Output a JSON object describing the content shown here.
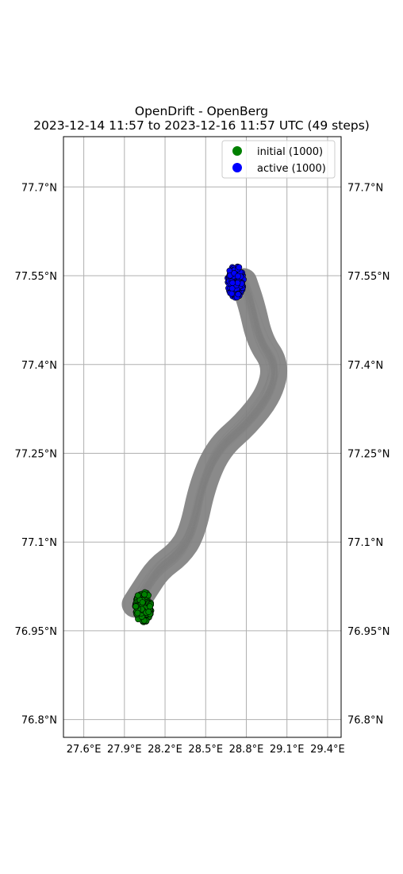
{
  "title": {
    "line1": "OpenDrift - OpenBerg",
    "line2": "2023-12-14 11:57 to 2023-12-16 11:57 UTC (49 steps)"
  },
  "axes": {
    "lon_range": [
      27.45,
      29.5
    ],
    "lat_range": [
      76.77,
      77.785
    ],
    "lon_ticks": [
      {
        "value": 27.6,
        "label": "27.6°E"
      },
      {
        "value": 27.9,
        "label": "27.9°E"
      },
      {
        "value": 28.2,
        "label": "28.2°E"
      },
      {
        "value": 28.5,
        "label": "28.5°E"
      },
      {
        "value": 28.8,
        "label": "28.8°E"
      },
      {
        "value": 29.1,
        "label": "29.1°E"
      },
      {
        "value": 29.4,
        "label": "29.4°E"
      }
    ],
    "lat_ticks": [
      {
        "value": 77.7,
        "label": "77.7°N"
      },
      {
        "value": 77.55,
        "label": "77.55°N"
      },
      {
        "value": 77.4,
        "label": "77.4°N"
      },
      {
        "value": 77.25,
        "label": "77.25°N"
      },
      {
        "value": 77.1,
        "label": "77.1°N"
      },
      {
        "value": 76.95,
        "label": "76.95°N"
      },
      {
        "value": 76.8,
        "label": "76.8°N"
      }
    ],
    "grid": true
  },
  "legend": {
    "placement": "top-right",
    "entries": [
      {
        "label": "initial (1000)",
        "color": "#008000"
      },
      {
        "label": "active (1000)",
        "color": "#0000ff"
      }
    ]
  },
  "chart_data": {
    "type": "scatter",
    "trajectory_centerline": [
      {
        "lon": 27.98,
        "lat": 76.995
      },
      {
        "lon": 28.05,
        "lat": 77.02
      },
      {
        "lon": 28.15,
        "lat": 77.055
      },
      {
        "lon": 28.3,
        "lat": 77.08
      },
      {
        "lon": 28.4,
        "lat": 77.115
      },
      {
        "lon": 28.48,
        "lat": 77.2
      },
      {
        "lon": 28.6,
        "lat": 77.26
      },
      {
        "lon": 28.8,
        "lat": 77.3
      },
      {
        "lon": 28.97,
        "lat": 77.35
      },
      {
        "lon": 29.02,
        "lat": 77.4
      },
      {
        "lon": 28.9,
        "lat": 77.44
      },
      {
        "lon": 28.84,
        "lat": 77.5
      },
      {
        "lon": 28.78,
        "lat": 77.54
      }
    ],
    "series": [
      {
        "name": "initial (1000)",
        "color": "#008000",
        "center": {
          "lon": 28.04,
          "lat": 76.99
        },
        "spread": {
          "lon": 0.06,
          "lat": 0.027
        },
        "count": 1000
      },
      {
        "name": "active (1000)",
        "color": "#0000ff",
        "center": {
          "lon": 28.72,
          "lat": 77.54
        },
        "spread": {
          "lon": 0.06,
          "lat": 0.027
        },
        "count": 1000
      }
    ],
    "trajectory_color": "#808080"
  }
}
